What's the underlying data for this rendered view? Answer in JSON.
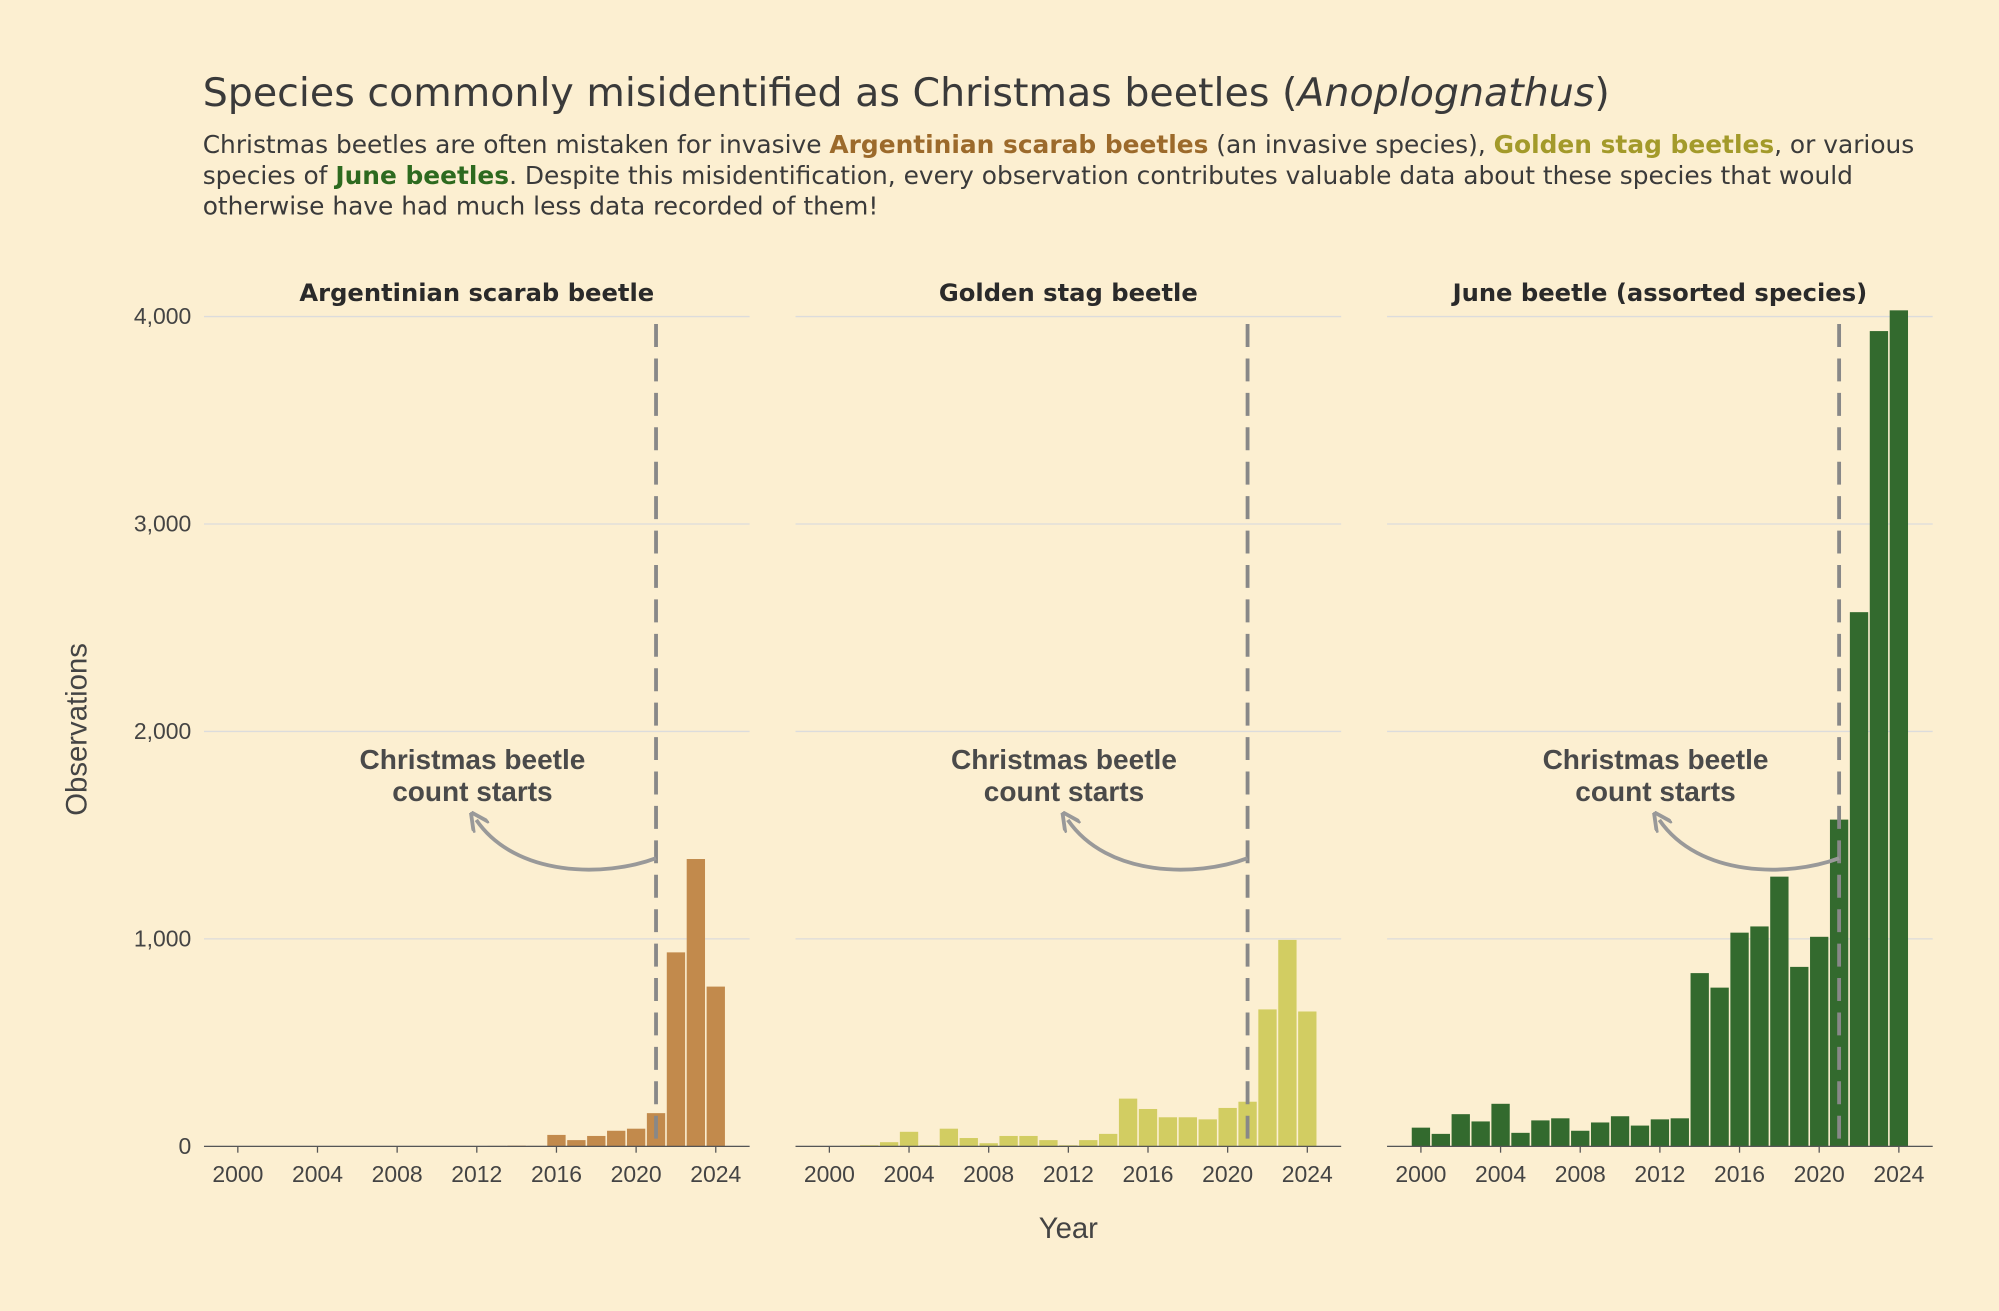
{
  "title": [
    {
      "text": "Species commonly misidentified as Christmas beetles ("
    },
    {
      "text": "Anoplognathus",
      "style": "italic"
    },
    {
      "text": ")"
    }
  ],
  "subtitle": [
    [
      {
        "text": "Christmas beetles are often mistaken for invasive "
      },
      {
        "text": "Argentinian scarab beetles",
        "color": "#9c6a2b"
      },
      {
        "text": " (an invasive species), "
      },
      {
        "text": "Golden stag beetles",
        "color": "#a39a2a"
      },
      {
        "text": ", or various"
      }
    ],
    [
      {
        "text": "species of "
      },
      {
        "text": "June beetles",
        "color": "#2d6a1f"
      },
      {
        "text": ". Despite this misidentification, every observation contributes valuable data about these species that would"
      }
    ],
    [
      {
        "text": "otherwise have had much less data recorded of them!"
      }
    ]
  ],
  "x_label": "Year",
  "y_label": "Observations",
  "chart_data": [
    {
      "type": "bar",
      "title": "Argentinian scarab beetle",
      "color": "#c28a4c",
      "x": [
        2000,
        2001,
        2002,
        2003,
        2004,
        2005,
        2006,
        2007,
        2008,
        2009,
        2010,
        2011,
        2012,
        2013,
        2014,
        2015,
        2016,
        2017,
        2018,
        2019,
        2020,
        2021,
        2022,
        2023,
        2024
      ],
      "values": [
        0,
        0,
        0,
        0,
        0,
        0,
        0,
        0,
        0,
        0,
        0,
        0,
        1,
        2,
        3,
        2,
        55,
        30,
        50,
        75,
        85,
        160,
        935,
        1385,
        770
      ],
      "xlim": [
        1998.3,
        2025.7
      ],
      "xticks": [
        2000,
        2004,
        2008,
        2012,
        2016,
        2020,
        2024
      ],
      "ylim": [
        0,
        4050
      ],
      "yticks": [
        0,
        {
          "value": 1000,
          "label": "1,000"
        },
        {
          "value": 2000,
          "label": "2,000"
        },
        {
          "value": 3000,
          "label": "3,000"
        },
        {
          "value": 4000,
          "label": "4,000"
        }
      ],
      "grid": true,
      "vline": 2021,
      "annotation": [
        "Christmas beetle",
        "count starts"
      ]
    },
    {
      "type": "bar",
      "title": "Golden stag beetle",
      "color": "#d2cd62",
      "x": [
        2000,
        2001,
        2002,
        2003,
        2004,
        2005,
        2006,
        2007,
        2008,
        2009,
        2010,
        2011,
        2012,
        2013,
        2014,
        2015,
        2016,
        2017,
        2018,
        2019,
        2020,
        2021,
        2022,
        2023,
        2024
      ],
      "values": [
        0,
        0,
        5,
        20,
        70,
        5,
        85,
        40,
        15,
        50,
        50,
        30,
        5,
        30,
        60,
        230,
        180,
        140,
        140,
        130,
        185,
        215,
        660,
        995,
        650
      ],
      "xlim": [
        1998.3,
        2025.7
      ],
      "xticks": [
        2000,
        2004,
        2008,
        2012,
        2016,
        2020,
        2024
      ],
      "ylim": [
        0,
        4050
      ],
      "yticks": [
        0,
        {
          "value": 1000,
          "label": "1,000"
        },
        {
          "value": 2000,
          "label": "2,000"
        },
        {
          "value": 3000,
          "label": "3,000"
        },
        {
          "value": 4000,
          "label": "4,000"
        }
      ],
      "grid": true,
      "vline": 2021,
      "annotation": [
        "Christmas beetle",
        "count starts"
      ]
    },
    {
      "type": "bar",
      "title": "June beetle (assorted species)",
      "color": "#336a2e",
      "x": [
        2000,
        2001,
        2002,
        2003,
        2004,
        2005,
        2006,
        2007,
        2008,
        2009,
        2010,
        2011,
        2012,
        2013,
        2014,
        2015,
        2016,
        2017,
        2018,
        2019,
        2020,
        2021,
        2022,
        2023,
        2024
      ],
      "values": [
        90,
        60,
        155,
        120,
        205,
        65,
        125,
        135,
        75,
        115,
        145,
        100,
        130,
        135,
        835,
        765,
        1030,
        1060,
        1300,
        865,
        1010,
        1575,
        2575,
        3930,
        4030
      ],
      "xlim": [
        1998.3,
        2025.7
      ],
      "xticks": [
        2000,
        2004,
        2008,
        2012,
        2016,
        2020,
        2024
      ],
      "ylim": [
        0,
        4050
      ],
      "yticks": [
        0,
        {
          "value": 1000,
          "label": "1,000"
        },
        {
          "value": 2000,
          "label": "2,000"
        },
        {
          "value": 3000,
          "label": "3,000"
        },
        {
          "value": 4000,
          "label": "4,000"
        }
      ],
      "grid": true,
      "vline": 2021,
      "annotation": [
        "Christmas beetle",
        "count starts"
      ]
    }
  ]
}
